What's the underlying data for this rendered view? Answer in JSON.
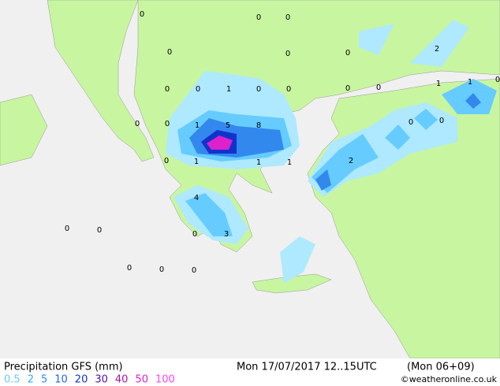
{
  "map": {
    "title": "Precipitation GFS (mm)",
    "valid": "Mon 17/07/2017 12..15UTC",
    "run": "(Mon 06+09)",
    "credit": "©weatheronline.co.uk",
    "legend": [
      {
        "value": 0.5,
        "color": "#66ccff"
      },
      {
        "value": 2,
        "color": "#33aaff"
      },
      {
        "value": 5,
        "color": "#3388ee"
      },
      {
        "value": 10,
        "color": "#2266dd"
      },
      {
        "value": 20,
        "color": "#1133cc"
      },
      {
        "value": 30,
        "color": "#5511aa"
      },
      {
        "value": 40,
        "color": "#aa11aa"
      },
      {
        "value": 50,
        "color": "#dd22cc"
      },
      {
        "value": 100,
        "color": "#ff44ff"
      }
    ],
    "labels": [
      "0",
      "0",
      "0",
      "2",
      "0",
      "0",
      "0",
      "0",
      "0",
      "1",
      "0",
      "0",
      "0",
      "0",
      "1",
      "1",
      "0",
      "0",
      "0",
      "1",
      "5",
      "8",
      "0",
      "0",
      "0",
      "1",
      "1",
      "1",
      "2",
      "4",
      "0",
      "0",
      "0",
      "3",
      "0",
      "0",
      "0"
    ]
  }
}
